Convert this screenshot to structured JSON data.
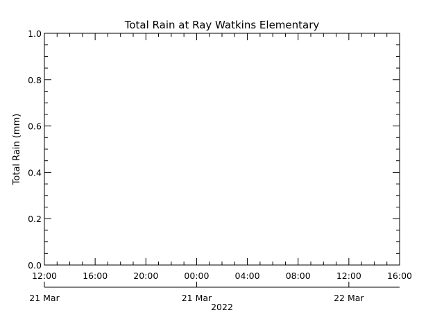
{
  "chart_data": {
    "type": "line",
    "title": "Total Rain at Ray Watkins Elementary",
    "ylabel": "Total Rain (mm)",
    "xlabel": "",
    "ylim": [
      0,
      1
    ],
    "y_ticks": [
      "0.0",
      "0.2",
      "0.4",
      "0.6",
      "0.8",
      "1.0"
    ],
    "x_time_ticks": [
      "12:00",
      "16:00",
      "20:00",
      "00:00",
      "04:00",
      "08:00",
      "12:00",
      "16:00"
    ],
    "x_date_ticks": [
      "21 Mar",
      "21 Mar",
      "22 Mar",
      "22 Mar",
      "22 Mar"
    ],
    "x_year": "2022",
    "series": [
      {
        "values": []
      }
    ],
    "grid": false
  }
}
